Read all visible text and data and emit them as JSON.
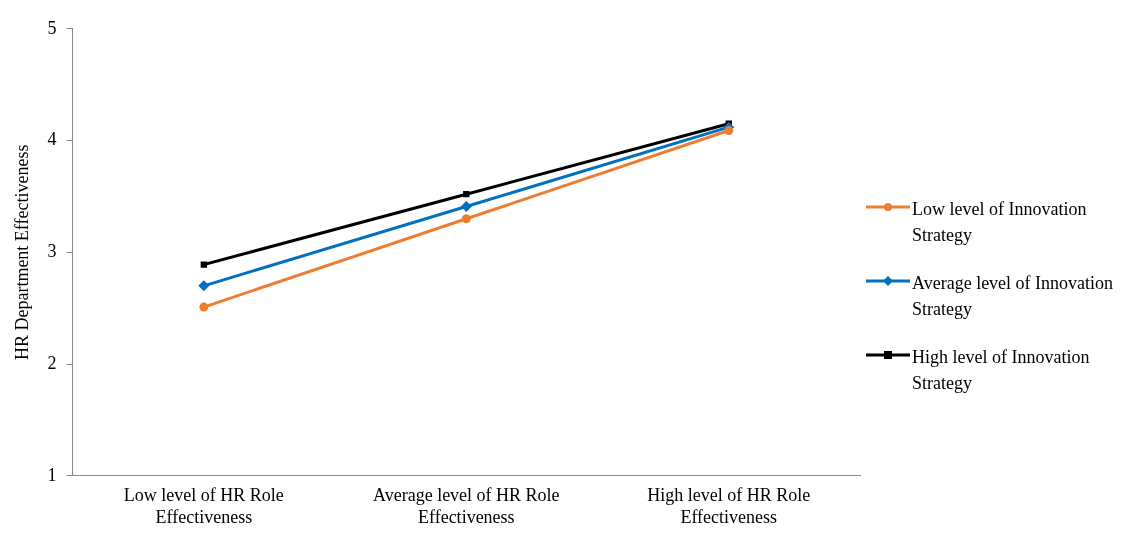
{
  "chart_data": {
    "type": "line",
    "ylabel": "HR Department Effectiveness",
    "categories": [
      "Low level of HR Role Effectiveness",
      "Average level of HR Role Effectiveness",
      "High level of HR Role Effectiveness"
    ],
    "series": [
      {
        "name": "Low level of Innovation Strategy",
        "color": "#ed7d31",
        "marker": "circle",
        "values": [
          2.51,
          3.3,
          4.09
        ]
      },
      {
        "name": "Average level of Innovation Strategy",
        "color": "#0070c0",
        "marker": "diamond",
        "values": [
          2.7,
          3.41,
          4.12
        ]
      },
      {
        "name": "High level of Innovation Strategy",
        "color": "#000000",
        "marker": "square",
        "values": [
          2.89,
          3.52,
          4.15
        ]
      }
    ],
    "ylim": [
      1,
      5
    ],
    "yticks": [
      1,
      2,
      3,
      4,
      5
    ],
    "grid": false,
    "legend": "right",
    "line_style": "solid"
  }
}
